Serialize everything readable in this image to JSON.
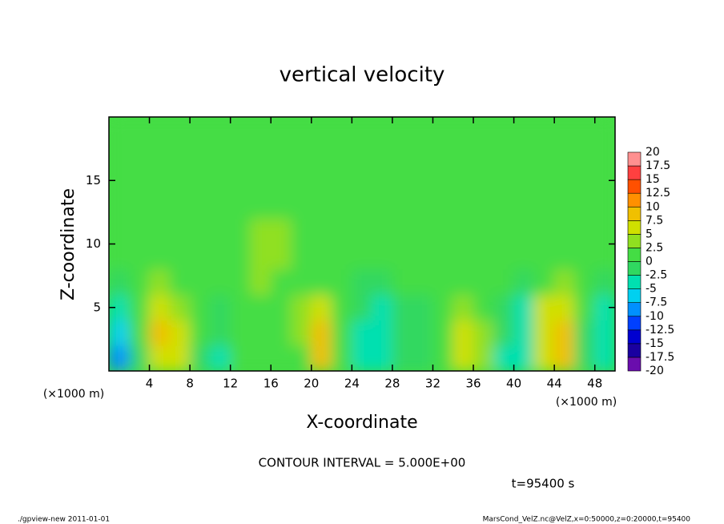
{
  "chart_data": {
    "type": "heatmap",
    "title": "vertical velocity",
    "x_label": "X-coordinate",
    "y_label": "Z-coordinate",
    "x_unit": "(×1000 m)",
    "y_unit": "(×1000 m)",
    "note": "CONTOUR INTERVAL = 5.000E+00",
    "time": "t=95400 s",
    "footer_left": "./gpview-new  2011-01-01",
    "footer_right": "MarsCond_VelZ.nc@VelZ,x=0:50000,z=0:20000,t=95400",
    "xlim": [
      0,
      50
    ],
    "ylim": [
      0,
      20
    ],
    "xticks": [
      4,
      8,
      12,
      16,
      20,
      24,
      28,
      32,
      36,
      40,
      44,
      48
    ],
    "yticks": [
      5,
      10,
      15
    ],
    "x": [
      1,
      3,
      5,
      7,
      9,
      11,
      13,
      15,
      17,
      19,
      21,
      23,
      25,
      27,
      29,
      31,
      33,
      35,
      37,
      39,
      41,
      43,
      45,
      47,
      49
    ],
    "z": [
      1,
      3,
      5,
      7,
      9,
      11,
      13,
      15,
      17,
      19
    ],
    "values": [
      [
        -9,
        -2,
        6,
        5,
        -2,
        -3,
        0,
        1,
        0,
        2,
        8,
        1,
        -3,
        -4,
        -2,
        -1,
        1,
        7,
        3,
        -3,
        -5,
        6,
        8,
        -2,
        -5
      ],
      [
        -6,
        0,
        8,
        6,
        0,
        -2,
        1,
        2,
        1,
        3,
        8,
        2,
        -3,
        -4,
        -2,
        -1,
        2,
        7,
        3,
        -2,
        -4,
        7,
        9,
        -1,
        -5
      ],
      [
        -3,
        1,
        6,
        4,
        1,
        -1,
        1,
        2,
        1,
        3,
        5,
        2,
        -2,
        -3,
        -1,
        -1,
        2,
        4,
        2,
        -1,
        -3,
        5,
        6,
        0,
        -3
      ],
      [
        -1,
        1,
        3,
        2,
        1,
        0,
        1,
        3,
        2,
        2,
        2,
        2,
        -1,
        -1,
        0,
        0,
        1,
        2,
        1,
        0,
        -1,
        2,
        3,
        1,
        -1
      ],
      [
        1,
        1,
        2,
        1,
        0,
        0,
        1,
        3,
        3,
        1,
        1,
        2,
        1,
        0,
        1,
        1,
        1,
        1,
        1,
        0,
        0,
        1,
        2,
        1,
        0
      ],
      [
        1,
        1,
        1,
        1,
        0,
        0,
        2,
        3,
        3,
        1,
        1,
        1,
        1,
        0,
        0,
        1,
        1,
        0,
        0,
        0,
        0,
        1,
        1,
        1,
        0
      ],
      [
        0,
        0,
        1,
        0,
        0,
        0,
        1,
        2,
        2,
        1,
        0,
        0,
        0,
        0,
        0,
        0,
        0,
        0,
        0,
        0,
        0,
        0,
        0,
        0,
        0
      ],
      [
        0,
        0,
        0,
        0,
        0,
        0,
        1,
        1,
        1,
        0,
        0,
        0,
        0,
        0,
        0,
        0,
        0,
        0,
        0,
        0,
        0,
        0,
        0,
        0,
        0
      ],
      [
        0,
        0,
        0,
        0,
        0,
        0,
        0,
        0,
        0,
        0,
        0,
        0,
        0,
        0,
        0,
        0,
        0,
        0,
        0,
        0,
        0,
        0,
        0,
        0,
        0
      ],
      [
        0,
        0,
        0,
        0,
        0,
        0,
        0,
        0,
        0,
        0,
        0,
        0,
        0,
        0,
        0,
        0,
        0,
        0,
        0,
        0,
        0,
        0,
        0,
        0,
        0
      ]
    ],
    "levels": [
      -20,
      -17.5,
      -15,
      -12.5,
      -10,
      -7.5,
      -5,
      -2.5,
      0,
      2.5,
      5,
      7.5,
      10,
      12.5,
      15,
      17.5,
      20
    ],
    "colors": [
      "#6a0dad",
      "#1a00a0",
      "#0000d0",
      "#0040ff",
      "#0090ff",
      "#00d0f0",
      "#00e0b0",
      "#30d860",
      "#44dd44",
      "#90e020",
      "#d0e000",
      "#f0c000",
      "#ff9000",
      "#ff5000",
      "#ff4040",
      "#ff9090"
    ]
  }
}
